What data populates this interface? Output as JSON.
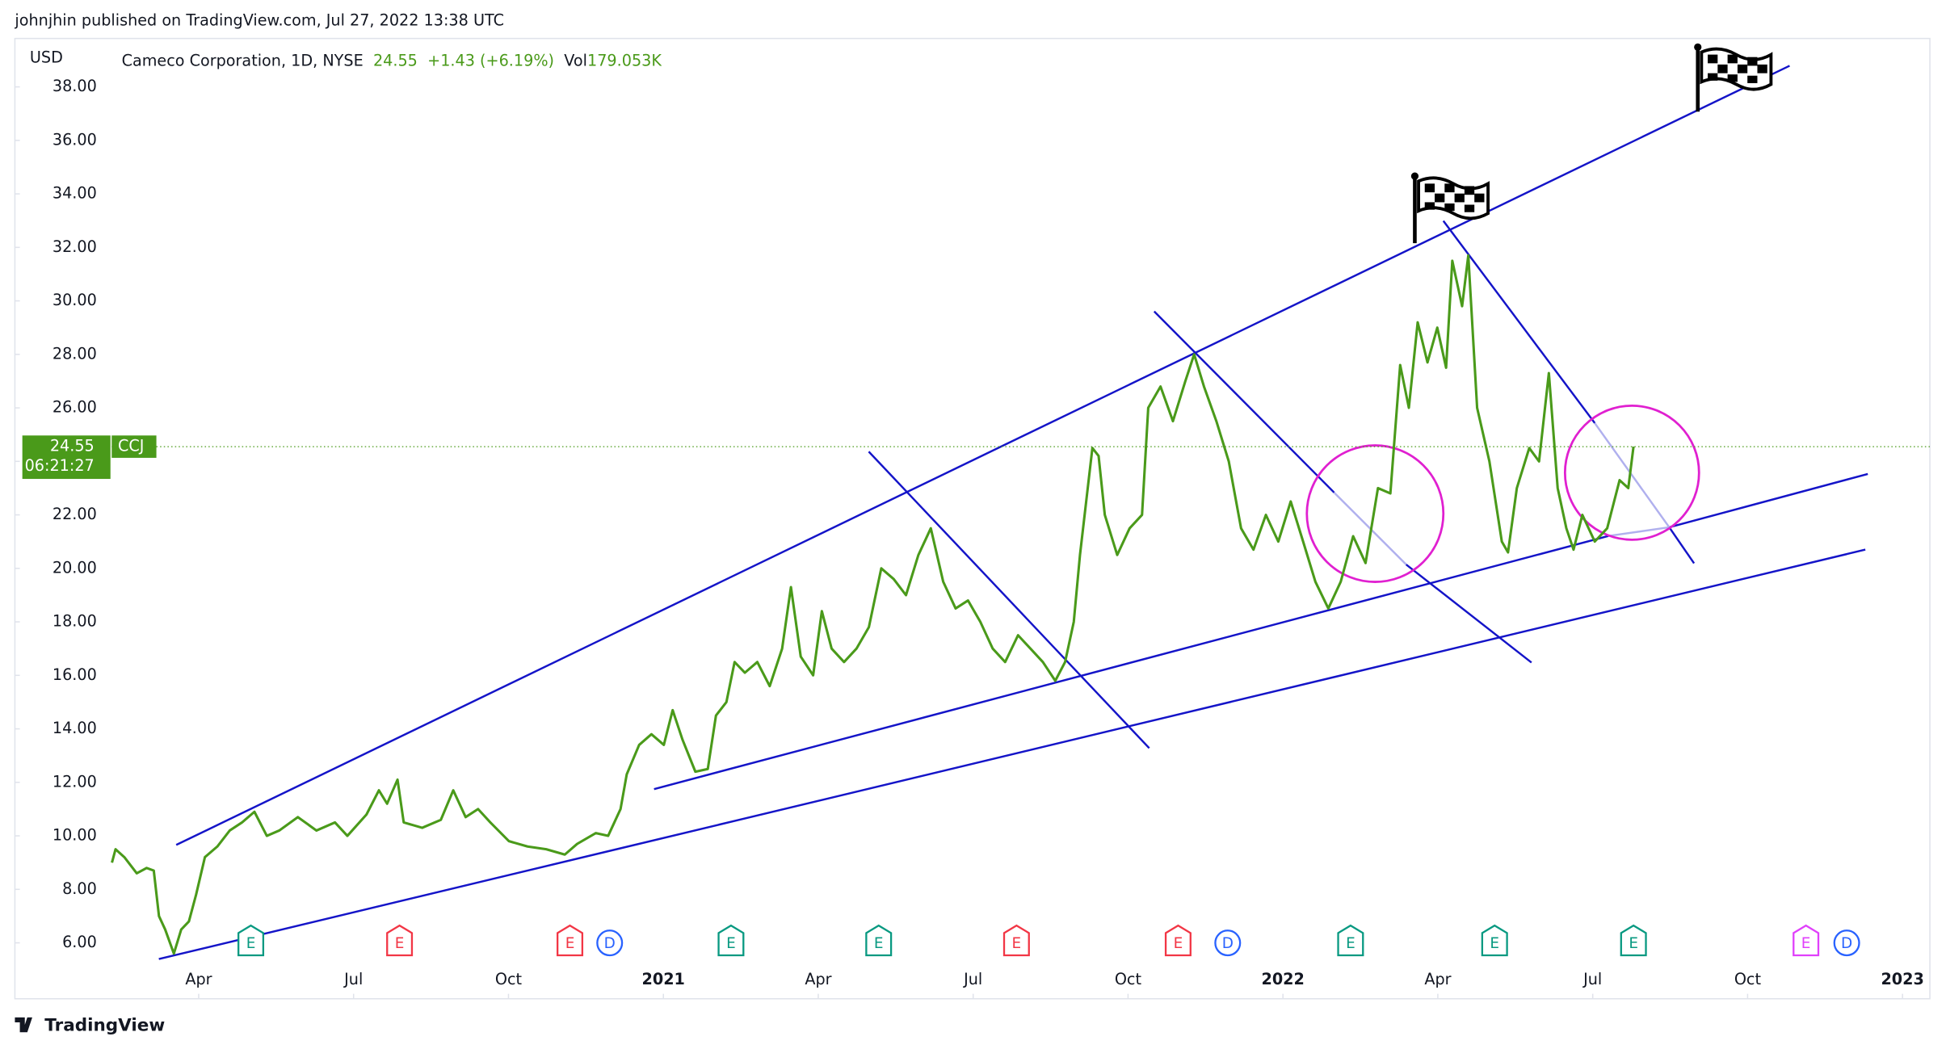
{
  "header": {
    "publisher": "johnjhin published on TradingView.com, Jul 27, 2022 13:38 UTC"
  },
  "chart_data": {
    "type": "line",
    "currency": "USD",
    "symbol_title": "Cameco Corporation, 1D, NYSE",
    "ticker": "CCJ",
    "last_price": 24.55,
    "change": "+1.43 (+6.19%)",
    "volume_label": "Vol",
    "volume": "179.053K",
    "countdown": "06:21:27",
    "xlim": [
      -0.56,
      36.53
    ],
    "ylim": [
      3.91,
      39.81
    ],
    "xticks": [
      {
        "value": 3,
        "label": "Apr"
      },
      {
        "value": 6,
        "label": "Jul"
      },
      {
        "value": 9,
        "label": "Oct"
      },
      {
        "value": 12,
        "label": "2021"
      },
      {
        "value": 15,
        "label": "Apr"
      },
      {
        "value": 18,
        "label": "Jul"
      },
      {
        "value": 21,
        "label": "Oct"
      },
      {
        "value": 24,
        "label": "2022"
      },
      {
        "value": 27,
        "label": "Apr"
      },
      {
        "value": 30,
        "label": "Jul"
      },
      {
        "value": 33,
        "label": "Oct"
      },
      {
        "value": 36,
        "label": "2023"
      }
    ],
    "yticks": [
      {
        "value": 6,
        "label": "6.00"
      },
      {
        "value": 8,
        "label": "8.00"
      },
      {
        "value": 10,
        "label": "10.00"
      },
      {
        "value": 12,
        "label": "12.00"
      },
      {
        "value": 14,
        "label": "14.00"
      },
      {
        "value": 16,
        "label": "16.00"
      },
      {
        "value": 18,
        "label": "18.00"
      },
      {
        "value": 20,
        "label": "20.00"
      },
      {
        "value": 22,
        "label": "22.00"
      },
      {
        "value": 24,
        "label": "24.00"
      },
      {
        "value": 26,
        "label": "26.00"
      },
      {
        "value": 28,
        "label": "28.00"
      },
      {
        "value": 30,
        "label": "30.00"
      },
      {
        "value": 32,
        "label": "32.00"
      },
      {
        "value": 34,
        "label": "34.00"
      },
      {
        "value": 36,
        "label": "36.00"
      },
      {
        "value": 38,
        "label": "38.00"
      }
    ],
    "series": [
      {
        "name": "CCJ",
        "color": "#4a9a1a",
        "x": [
          1.32,
          1.39,
          1.56,
          1.8,
          1.99,
          2.13,
          2.23,
          2.35,
          2.52,
          2.66,
          2.81,
          2.95,
          3.12,
          3.36,
          3.6,
          3.84,
          4.08,
          4.32,
          4.56,
          4.92,
          5.28,
          5.64,
          5.88,
          6.25,
          6.49,
          6.65,
          6.85,
          6.97,
          7.33,
          7.69,
          7.93,
          8.17,
          8.41,
          8.65,
          9.01,
          9.37,
          9.73,
          10.09,
          10.33,
          10.69,
          10.93,
          11.17,
          11.29,
          11.53,
          11.77,
          12.01,
          12.18,
          12.37,
          12.62,
          12.86,
          13.02,
          13.22,
          13.38,
          13.58,
          13.82,
          14.06,
          14.3,
          14.47,
          14.66,
          14.9,
          15.07,
          15.26,
          15.5,
          15.74,
          15.98,
          16.22,
          16.46,
          16.7,
          16.94,
          17.18,
          17.42,
          17.66,
          17.9,
          18.14,
          18.38,
          18.62,
          18.87,
          19.11,
          19.35,
          19.59,
          19.78,
          19.95,
          20.07,
          20.19,
          20.31,
          20.43,
          20.55,
          20.79,
          21.03,
          21.27,
          21.39,
          21.63,
          21.87,
          22.11,
          22.28,
          22.47,
          22.71,
          22.95,
          23.19,
          23.43,
          23.67,
          23.91,
          24.15,
          24.39,
          24.63,
          24.88,
          25.12,
          25.36,
          25.6,
          25.84,
          26.08,
          26.27,
          26.44,
          26.61,
          26.8,
          26.99,
          27.16,
          27.28,
          27.47,
          27.59,
          27.76,
          28.0,
          28.24,
          28.36,
          28.53,
          28.77,
          28.96,
          29.15,
          29.32,
          29.49,
          29.63,
          29.8,
          30.04,
          30.28,
          30.52,
          30.69,
          30.79
        ],
        "values": [
          9.0,
          9.5,
          9.2,
          8.6,
          8.8,
          8.7,
          7.0,
          6.5,
          5.6,
          6.5,
          6.8,
          7.8,
          9.2,
          9.6,
          10.2,
          10.5,
          10.9,
          10.0,
          10.2,
          10.7,
          10.2,
          10.5,
          10.0,
          10.8,
          11.7,
          11.2,
          12.1,
          10.5,
          10.3,
          10.6,
          11.7,
          10.7,
          11.0,
          10.5,
          9.8,
          9.6,
          9.5,
          9.3,
          9.7,
          10.1,
          10.0,
          11.0,
          12.3,
          13.4,
          13.8,
          13.4,
          14.7,
          13.6,
          12.4,
          12.5,
          14.5,
          15.0,
          16.5,
          16.1,
          16.5,
          15.6,
          17.0,
          19.3,
          16.7,
          16.0,
          18.4,
          17.0,
          16.5,
          17.0,
          17.8,
          20.0,
          19.6,
          19.0,
          20.5,
          21.5,
          19.5,
          18.5,
          18.8,
          18.0,
          17.0,
          16.5,
          17.5,
          17.0,
          16.5,
          15.8,
          16.5,
          18.0,
          20.5,
          22.5,
          24.5,
          24.2,
          22.0,
          20.5,
          21.5,
          22.0,
          26.0,
          26.8,
          25.5,
          27.0,
          28.0,
          26.8,
          25.5,
          24.0,
          21.5,
          20.7,
          22.0,
          21.0,
          22.5,
          21.0,
          19.5,
          18.5,
          19.5,
          21.2,
          20.2,
          23.0,
          22.8,
          27.6,
          26.0,
          29.2,
          27.7,
          29.0,
          27.5,
          31.5,
          29.8,
          31.7,
          26.0,
          24.0,
          21.0,
          20.6,
          23.0,
          24.5,
          24.0,
          27.3,
          23.0,
          21.5,
          20.7,
          22.0,
          21.0,
          21.5,
          23.3,
          23.0,
          24.55
        ]
      }
    ],
    "events": [
      {
        "label": "E",
        "x": 4.01,
        "color": "#089981"
      },
      {
        "label": "E",
        "x": 6.89,
        "color": "#f23645"
      },
      {
        "label": "E",
        "x": 10.19,
        "color": "#f23645"
      },
      {
        "label": "D",
        "x": 10.96,
        "color": "#2962ff"
      },
      {
        "label": "E",
        "x": 13.31,
        "color": "#089981"
      },
      {
        "label": "E",
        "x": 16.17,
        "color": "#089981"
      },
      {
        "label": "E",
        "x": 18.84,
        "color": "#f23645"
      },
      {
        "label": "E",
        "x": 21.97,
        "color": "#f23645"
      },
      {
        "label": "D",
        "x": 22.93,
        "color": "#2962ff"
      },
      {
        "label": "E",
        "x": 25.31,
        "color": "#089981"
      },
      {
        "label": "E",
        "x": 28.1,
        "color": "#089981"
      },
      {
        "label": "E",
        "x": 30.79,
        "color": "#089981"
      },
      {
        "label": "E",
        "x": 34.13,
        "color": "#e040fb"
      },
      {
        "label": "D",
        "x": 34.92,
        "color": "#2962ff"
      }
    ]
  },
  "footer": {
    "brand": "TradingView"
  }
}
